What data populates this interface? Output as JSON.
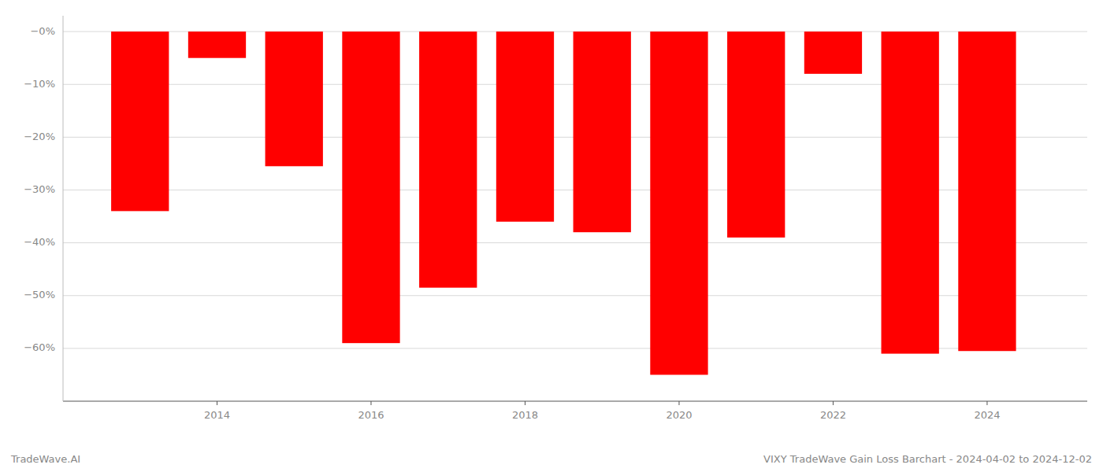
{
  "chart_data": {
    "type": "bar",
    "title": "VIXY TradeWave Gain Loss Barchart - 2024-04-02 to 2024-12-02",
    "annotations": [
      "TradeWave.AI"
    ],
    "x": [
      2013,
      2014,
      2015,
      2016,
      2017,
      2018,
      2019,
      2020,
      2021,
      2022,
      2023,
      2024
    ],
    "values": [
      -34.0,
      -5.0,
      -25.5,
      -59.0,
      -48.5,
      -36.0,
      -38.0,
      -65.0,
      -39.0,
      -8.0,
      -61.0,
      -60.5
    ],
    "color": "#ff0000",
    "xlim": [
      2012.0,
      2025.3
    ],
    "xticks": [
      2014,
      2016,
      2018,
      2020,
      2022,
      2024
    ],
    "ylim": [
      -70,
      3
    ],
    "yticks": [
      {
        "value": 0,
        "label": "−0%"
      },
      {
        "value": -10,
        "label": "−10%"
      },
      {
        "value": -20,
        "label": "−20%"
      },
      {
        "value": -30,
        "label": "−30%"
      },
      {
        "value": -40,
        "label": "−40%"
      },
      {
        "value": -50,
        "label": "−50%"
      },
      {
        "value": -60,
        "label": "−60%"
      }
    ],
    "grid": true
  }
}
